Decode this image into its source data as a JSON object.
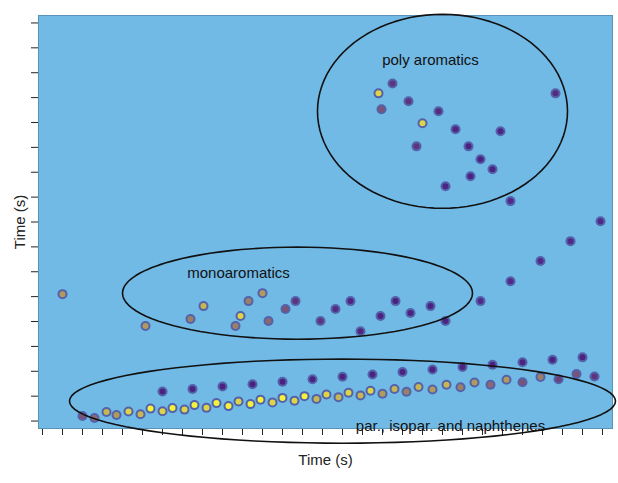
{
  "chart_data": {
    "type": "heatmap",
    "x_label": "Time (s)",
    "y_label": "Time (s)",
    "xlim": [
      -0.2,
      28.5
    ],
    "ylim": [
      -0.3,
      16.3
    ],
    "xticks": [
      0,
      1,
      2,
      3,
      4,
      5,
      6,
      7,
      8,
      9,
      10,
      11,
      12,
      13,
      14,
      15,
      16,
      17,
      18,
      19,
      20,
      21,
      22,
      23,
      24,
      25,
      26,
      27,
      28
    ],
    "yticks": [
      0,
      1,
      2,
      3,
      4,
      5,
      6,
      7,
      8,
      9,
      10,
      11,
      12,
      13,
      14,
      15,
      16
    ],
    "tick_labels": false,
    "intensity_range": [
      0,
      1
    ],
    "peaks": {
      "x": [
        2.0,
        2.6,
        3.2,
        3.7,
        4.3,
        4.9,
        5.4,
        6.0,
        6.5,
        7.1,
        7.6,
        8.2,
        8.7,
        9.3,
        9.8,
        10.4,
        10.9,
        11.5,
        12.0,
        12.6,
        13.1,
        13.7,
        14.2,
        14.8,
        15.3,
        15.9,
        16.4,
        17.0,
        17.6,
        18.2,
        18.8,
        19.5,
        20.2,
        20.9,
        21.6,
        22.4,
        23.2,
        24.0,
        24.9,
        25.8,
        26.7,
        27.6,
        6.0,
        7.5,
        9.0,
        10.5,
        12.0,
        13.5,
        15.0,
        16.5,
        18.0,
        19.5,
        21.0,
        22.5,
        24.0,
        25.5,
        27.0,
        5.15,
        7.4,
        8.05,
        9.65,
        9.9,
        10.3,
        11.0,
        11.3,
        12.15,
        12.65,
        13.9,
        14.65,
        15.4,
        15.9,
        16.9,
        17.65,
        18.4,
        19.4,
        20.15,
        1.0,
        21.9,
        23.4,
        24.9,
        26.4,
        27.9,
        16.8,
        17.5,
        16.95,
        18.3,
        19.0,
        18.7,
        19.8,
        20.65,
        21.3,
        21.9,
        22.5,
        21.4,
        20.15,
        22.9,
        25.65,
        23.4
      ],
      "y": [
        0.2,
        0.12,
        0.36,
        0.24,
        0.38,
        0.27,
        0.5,
        0.39,
        0.52,
        0.46,
        0.64,
        0.53,
        0.72,
        0.6,
        0.79,
        0.68,
        0.86,
        0.75,
        0.93,
        0.82,
        1.0,
        0.89,
        1.07,
        0.96,
        1.14,
        1.03,
        1.22,
        1.1,
        1.29,
        1.18,
        1.37,
        1.27,
        1.46,
        1.36,
        1.55,
        1.46,
        1.66,
        1.56,
        1.77,
        1.68,
        1.89,
        1.79,
        1.19,
        1.29,
        1.39,
        1.48,
        1.58,
        1.68,
        1.78,
        1.87,
        1.97,
        2.07,
        2.17,
        2.26,
        2.36,
        2.46,
        2.56,
        3.82,
        4.1,
        4.62,
        3.82,
        4.22,
        4.82,
        5.14,
        4.02,
        4.5,
        4.82,
        4.02,
        4.5,
        4.82,
        3.61,
        4.22,
        4.82,
        4.34,
        4.62,
        4.02,
        5.1,
        4.82,
        5.62,
        6.43,
        7.23,
        8.03,
        13.17,
        13.57,
        12.53,
        12.85,
        11.97,
        11.04,
        12.45,
        11.73,
        11.04,
        10.52,
        10.12,
        9.84,
        9.44,
        11.65,
        13.17,
        8.84
      ],
      "intensity": [
        0.7,
        0.75,
        0.9,
        0.85,
        0.95,
        0.9,
        1,
        0.95,
        1,
        0.95,
        1,
        0.95,
        1,
        1,
        0.95,
        1,
        1,
        0.95,
        1,
        0.95,
        1,
        0.9,
        0.95,
        0.9,
        0.95,
        0.9,
        0.95,
        0.85,
        0.9,
        0.8,
        0.9,
        0.85,
        0.9,
        0.8,
        0.85,
        0.75,
        0.85,
        0.7,
        0.8,
        0.65,
        0.7,
        0.6,
        0.45,
        0.45,
        0.45,
        0.45,
        0.45,
        0.45,
        0.45,
        0.45,
        0.45,
        0.45,
        0.45,
        0.45,
        0.45,
        0.45,
        0.45,
        0.85,
        0.8,
        0.9,
        0.8,
        0.95,
        0.8,
        0.85,
        0.75,
        0.7,
        0.6,
        0.6,
        0.55,
        0.5,
        0.5,
        0.45,
        0.45,
        0.4,
        0.4,
        0.35,
        0.85,
        0.3,
        0.3,
        0.3,
        0.3,
        0.3,
        0.95,
        0.6,
        0.7,
        0.6,
        0.95,
        0.6,
        0.55,
        0.5,
        0.45,
        0.45,
        0.4,
        0.4,
        0.35,
        0.35,
        0.55,
        0.3
      ]
    },
    "annotations": [
      {
        "text": "poly aromatics",
        "x": 19.4,
        "y": 14.5,
        "ellipse": {
          "cx": 20.0,
          "cy": 12.45,
          "rx": 6.25,
          "ry": 3.9
        }
      },
      {
        "text": "monoaromatics",
        "x": 9.8,
        "y": 5.94,
        "ellipse": {
          "cx": 12.75,
          "cy": 5.14,
          "rx": 8.75,
          "ry": 1.85
        }
      },
      {
        "text": "par., isopar. and naphthenes",
        "x": 20.4,
        "y": -0.2,
        "ellipse": {
          "cx": 15.0,
          "cy": 0.8,
          "rx": 13.65,
          "ry": 1.69
        }
      }
    ]
  }
}
